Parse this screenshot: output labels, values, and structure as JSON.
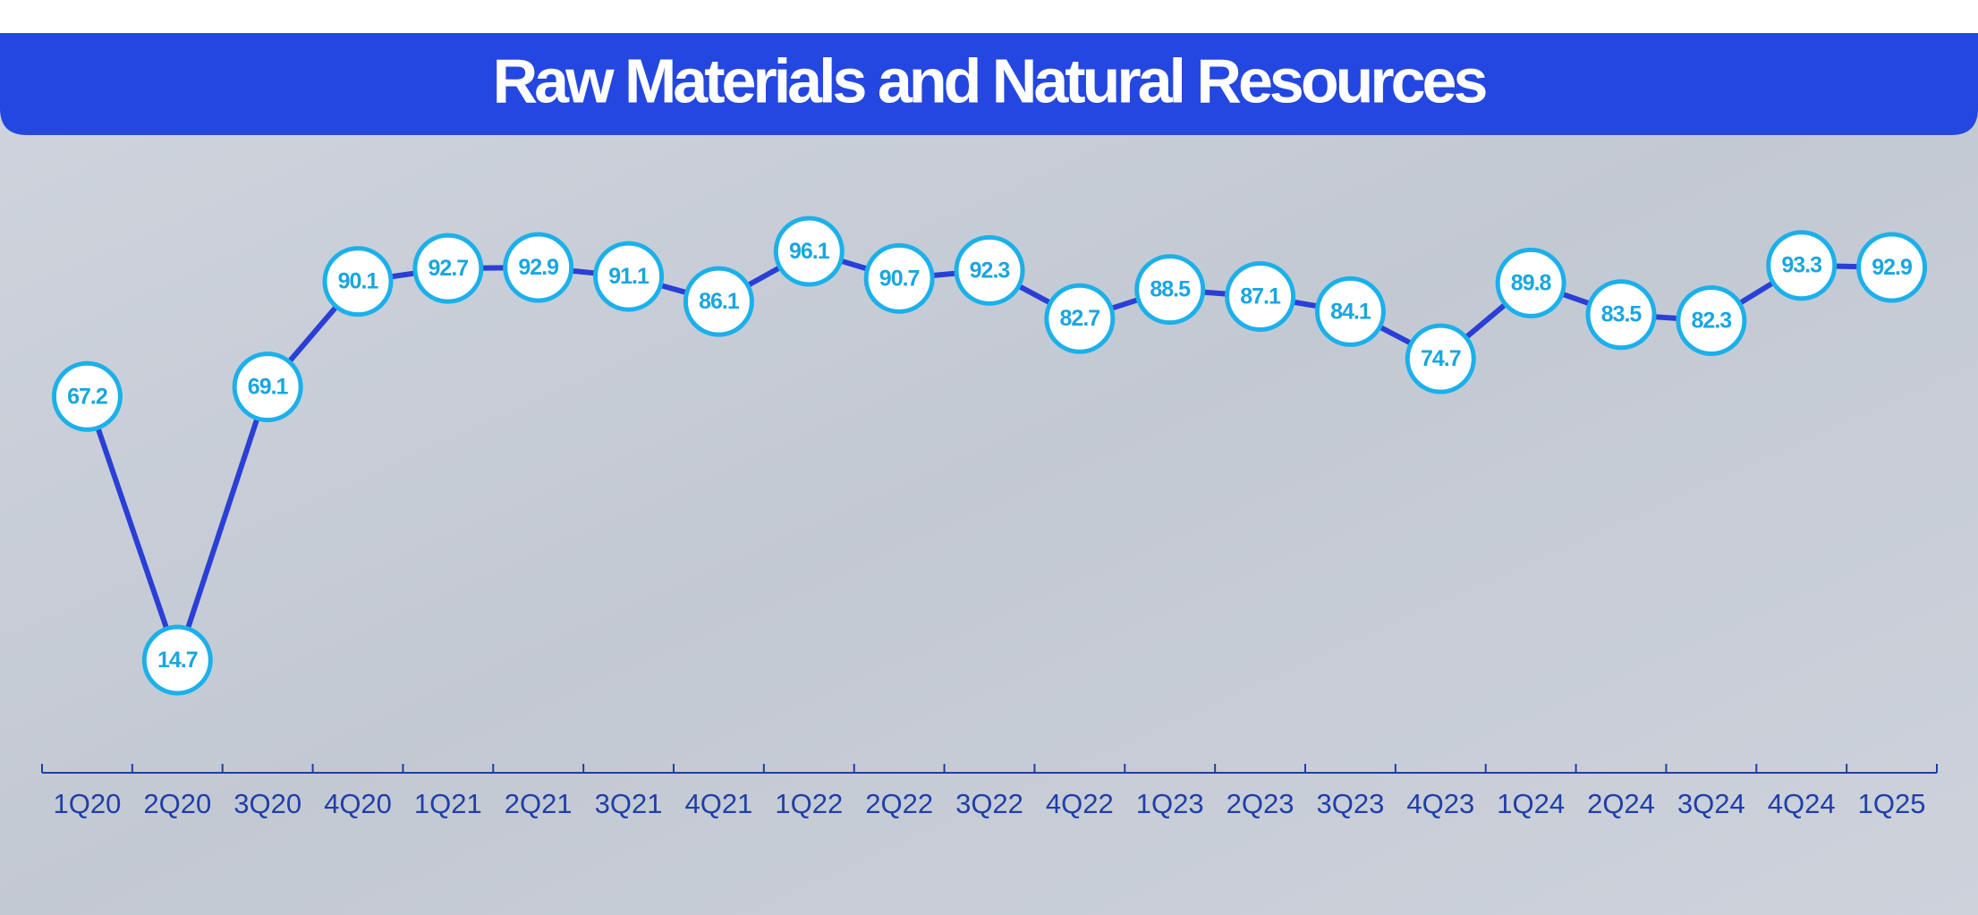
{
  "chart_data": {
    "type": "line",
    "title": "Raw Materials and Natural Resources",
    "categories": [
      "1Q20",
      "2Q20",
      "3Q20",
      "4Q20",
      "1Q21",
      "2Q21",
      "3Q21",
      "4Q21",
      "1Q22",
      "2Q22",
      "3Q22",
      "4Q22",
      "1Q23",
      "2Q23",
      "3Q23",
      "4Q23",
      "1Q24",
      "2Q24",
      "3Q24",
      "4Q24",
      "1Q25"
    ],
    "values": [
      67.2,
      14.7,
      69.1,
      90.1,
      92.7,
      92.9,
      91.1,
      86.1,
      96.1,
      90.7,
      92.3,
      82.7,
      88.5,
      87.1,
      84.1,
      74.7,
      89.8,
      83.5,
      82.3,
      93.3,
      92.9
    ],
    "color": "#2a3fd6"
  }
}
